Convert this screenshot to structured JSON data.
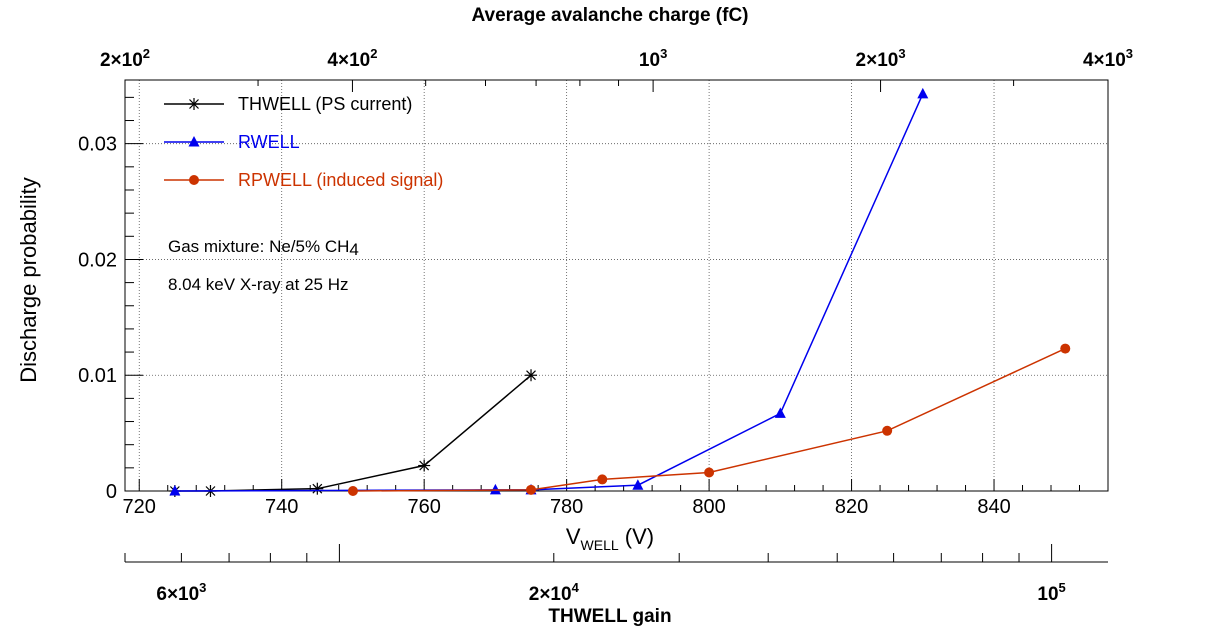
{
  "colors": {
    "thwell": "#000000",
    "rwell": "#0000ee",
    "rpwell": "#cc3300",
    "grid": "#555555",
    "axis": "#000000"
  },
  "chart_data": {
    "type": "line",
    "title": "",
    "xlabel_main": "V",
    "xlabel_sub": "WELL",
    "xlabel_unit": " (V)",
    "ylabel": "Discharge probability",
    "xlim": [
      718,
      856
    ],
    "ylim": [
      0,
      0.0355
    ],
    "x_ticks": [
      720,
      740,
      760,
      780,
      800,
      820,
      840
    ],
    "x_tick_labels": [
      "720",
      "740",
      "760",
      "780",
      "800",
      "820",
      "840"
    ],
    "y_ticks": [
      0,
      0.01,
      0.02,
      0.03
    ],
    "y_tick_labels": [
      "0",
      "0.01",
      "0.02",
      "0.03"
    ],
    "top_axis": {
      "label": "Average avalanche charge (fC)",
      "scale": "log",
      "range": [
        200,
        4000
      ],
      "tick_labels": [
        {
          "value": 200,
          "mant": "2",
          "exp": "2"
        },
        {
          "value": 400,
          "mant": "4",
          "exp": "2"
        },
        {
          "value": 1000,
          "mant": "",
          "exp": "3"
        },
        {
          "value": 2000,
          "mant": "2",
          "exp": "3"
        },
        {
          "value": 4000,
          "mant": "4",
          "exp": "3"
        }
      ]
    },
    "bottom_axis": {
      "label": "THWELL gain",
      "scale": "log",
      "range": [
        5000,
        120000
      ],
      "tick_labels": [
        {
          "value": 6000,
          "mant": "6",
          "exp": "3"
        },
        {
          "value": 20000,
          "mant": "2",
          "exp": "4"
        },
        {
          "value": 100000,
          "mant": "",
          "exp": "5"
        }
      ]
    },
    "series": [
      {
        "name": "THWELL (PS current)",
        "marker": "star",
        "color_key": "thwell",
        "x": [
          725,
          730,
          745,
          760,
          775
        ],
        "y": [
          0.0,
          0.0,
          0.0002,
          0.0022,
          0.01
        ]
      },
      {
        "name": "RWELL",
        "marker": "triangle",
        "color_key": "rwell",
        "x": [
          725,
          770,
          775,
          790,
          810,
          830
        ],
        "y": [
          0.0,
          0.0001,
          0.0001,
          0.0005,
          0.0067,
          0.0343
        ]
      },
      {
        "name": "RPWELL (induced signal)",
        "marker": "circle",
        "color_key": "rpwell",
        "x": [
          750,
          775,
          785,
          800,
          825,
          850
        ],
        "y": [
          0.0,
          0.0001,
          0.001,
          0.0016,
          0.0052,
          0.0123
        ]
      }
    ],
    "annotations": {
      "gas_prefix": "Gas mixture: Ne/5% CH",
      "gas_sub": "4",
      "xray": "8.04 keV X-ray at 25 Hz"
    },
    "legend_position": "top-left",
    "grid": true
  }
}
